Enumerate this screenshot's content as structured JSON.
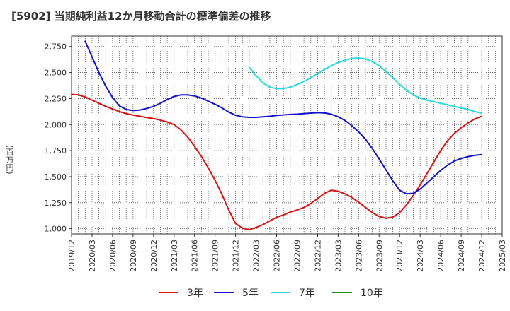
{
  "chart_data": {
    "type": "line",
    "title": "[5902]  当期純利益12か月移動合計の標準偏差の推移",
    "ylabel": "(百万円)",
    "xlabel": "",
    "ylim": [
      950,
      2850
    ],
    "yticks": [
      1000,
      1250,
      1500,
      1750,
      2000,
      2250,
      2500,
      2750
    ],
    "ytick_labels": [
      "1,000",
      "1,250",
      "1,500",
      "1,750",
      "2,000",
      "2,250",
      "2,500",
      "2,750"
    ],
    "xlim": [
      "2019-12",
      "2025-03"
    ],
    "xticks": [
      "2019/12",
      "2020/03",
      "2020/06",
      "2020/09",
      "2020/12",
      "2021/03",
      "2021/06",
      "2021/09",
      "2021/12",
      "2022/03",
      "2022/06",
      "2022/09",
      "2022/12",
      "2023/03",
      "2023/06",
      "2023/09",
      "2023/12",
      "2024/03",
      "2024/06",
      "2024/09",
      "2024/12",
      "2025/03"
    ],
    "grid": true,
    "legend_position": "bottom",
    "series": [
      {
        "name": "3年",
        "color": "#dd1111",
        "points": [
          [
            "2019-12",
            2290
          ],
          [
            "2020-01",
            2285
          ],
          [
            "2020-02",
            2265
          ],
          [
            "2020-03",
            2235
          ],
          [
            "2020-04",
            2205
          ],
          [
            "2020-05",
            2175
          ],
          [
            "2020-06",
            2150
          ],
          [
            "2020-07",
            2125
          ],
          [
            "2020-08",
            2105
          ],
          [
            "2020-09",
            2092
          ],
          [
            "2020-10",
            2080
          ],
          [
            "2020-11",
            2068
          ],
          [
            "2020-12",
            2058
          ],
          [
            "2021-01",
            2043
          ],
          [
            "2021-02",
            2025
          ],
          [
            "2021-03",
            2000
          ],
          [
            "2021-04",
            1950
          ],
          [
            "2021-05",
            1880
          ],
          [
            "2021-06",
            1790
          ],
          [
            "2021-07",
            1695
          ],
          [
            "2021-08",
            1585
          ],
          [
            "2021-09",
            1465
          ],
          [
            "2021-10",
            1330
          ],
          [
            "2021-11",
            1180
          ],
          [
            "2021-12",
            1050
          ],
          [
            "2022-01",
            1005
          ],
          [
            "2022-02",
            990
          ],
          [
            "2022-03",
            1012
          ],
          [
            "2022-04",
            1040
          ],
          [
            "2022-05",
            1075
          ],
          [
            "2022-06",
            1110
          ],
          [
            "2022-07",
            1132
          ],
          [
            "2022-08",
            1160
          ],
          [
            "2022-09",
            1180
          ],
          [
            "2022-10",
            1205
          ],
          [
            "2022-11",
            1242
          ],
          [
            "2022-12",
            1290
          ],
          [
            "2023-01",
            1340
          ],
          [
            "2023-02",
            1370
          ],
          [
            "2023-03",
            1360
          ],
          [
            "2023-04",
            1335
          ],
          [
            "2023-05",
            1300
          ],
          [
            "2023-06",
            1255
          ],
          [
            "2023-07",
            1205
          ],
          [
            "2023-08",
            1155
          ],
          [
            "2023-09",
            1118
          ],
          [
            "2023-10",
            1100
          ],
          [
            "2023-11",
            1112
          ],
          [
            "2023-12",
            1155
          ],
          [
            "2024-01",
            1230
          ],
          [
            "2024-02",
            1320
          ],
          [
            "2024-03",
            1420
          ],
          [
            "2024-04",
            1530
          ],
          [
            "2024-05",
            1640
          ],
          [
            "2024-06",
            1750
          ],
          [
            "2024-07",
            1845
          ],
          [
            "2024-08",
            1915
          ],
          [
            "2024-09",
            1970
          ],
          [
            "2024-10",
            2015
          ],
          [
            "2024-11",
            2055
          ],
          [
            "2024-12",
            2080
          ]
        ]
      },
      {
        "name": "5年",
        "color": "#1111cc",
        "points": [
          [
            "2020-02",
            2800
          ],
          [
            "2020-03",
            2650
          ],
          [
            "2020-04",
            2500
          ],
          [
            "2020-05",
            2370
          ],
          [
            "2020-06",
            2260
          ],
          [
            "2020-07",
            2180
          ],
          [
            "2020-08",
            2145
          ],
          [
            "2020-09",
            2135
          ],
          [
            "2020-10",
            2140
          ],
          [
            "2020-11",
            2155
          ],
          [
            "2020-12",
            2175
          ],
          [
            "2021-01",
            2205
          ],
          [
            "2021-02",
            2240
          ],
          [
            "2021-03",
            2270
          ],
          [
            "2021-04",
            2285
          ],
          [
            "2021-05",
            2285
          ],
          [
            "2021-06",
            2275
          ],
          [
            "2021-07",
            2255
          ],
          [
            "2021-08",
            2225
          ],
          [
            "2021-09",
            2195
          ],
          [
            "2021-10",
            2160
          ],
          [
            "2021-11",
            2120
          ],
          [
            "2021-12",
            2090
          ],
          [
            "2022-01",
            2075
          ],
          [
            "2022-02",
            2070
          ],
          [
            "2022-03",
            2070
          ],
          [
            "2022-04",
            2075
          ],
          [
            "2022-05",
            2080
          ],
          [
            "2022-06",
            2088
          ],
          [
            "2022-07",
            2093
          ],
          [
            "2022-08",
            2098
          ],
          [
            "2022-09",
            2100
          ],
          [
            "2022-10",
            2105
          ],
          [
            "2022-11",
            2110
          ],
          [
            "2022-12",
            2115
          ],
          [
            "2023-01",
            2112
          ],
          [
            "2023-02",
            2100
          ],
          [
            "2023-03",
            2075
          ],
          [
            "2023-04",
            2040
          ],
          [
            "2023-05",
            1990
          ],
          [
            "2023-06",
            1930
          ],
          [
            "2023-07",
            1860
          ],
          [
            "2023-08",
            1770
          ],
          [
            "2023-09",
            1670
          ],
          [
            "2023-10",
            1565
          ],
          [
            "2023-11",
            1460
          ],
          [
            "2023-12",
            1370
          ],
          [
            "2024-01",
            1335
          ],
          [
            "2024-02",
            1340
          ],
          [
            "2024-03",
            1380
          ],
          [
            "2024-04",
            1440
          ],
          [
            "2024-05",
            1500
          ],
          [
            "2024-06",
            1560
          ],
          [
            "2024-07",
            1610
          ],
          [
            "2024-08",
            1650
          ],
          [
            "2024-09",
            1675
          ],
          [
            "2024-10",
            1692
          ],
          [
            "2024-11",
            1705
          ],
          [
            "2024-12",
            1712
          ]
        ]
      },
      {
        "name": "7年",
        "color": "#22dddd",
        "points": [
          [
            "2022-02",
            2550
          ],
          [
            "2022-03",
            2470
          ],
          [
            "2022-04",
            2400
          ],
          [
            "2022-05",
            2360
          ],
          [
            "2022-06",
            2345
          ],
          [
            "2022-07",
            2345
          ],
          [
            "2022-08",
            2360
          ],
          [
            "2022-09",
            2385
          ],
          [
            "2022-10",
            2415
          ],
          [
            "2022-11",
            2450
          ],
          [
            "2022-12",
            2490
          ],
          [
            "2023-01",
            2530
          ],
          [
            "2023-02",
            2565
          ],
          [
            "2023-03",
            2595
          ],
          [
            "2023-04",
            2620
          ],
          [
            "2023-05",
            2635
          ],
          [
            "2023-06",
            2640
          ],
          [
            "2023-07",
            2630
          ],
          [
            "2023-08",
            2605
          ],
          [
            "2023-09",
            2565
          ],
          [
            "2023-10",
            2510
          ],
          [
            "2023-11",
            2450
          ],
          [
            "2023-12",
            2385
          ],
          [
            "2024-01",
            2330
          ],
          [
            "2024-02",
            2285
          ],
          [
            "2024-03",
            2255
          ],
          [
            "2024-04",
            2235
          ],
          [
            "2024-05",
            2220
          ],
          [
            "2024-06",
            2205
          ],
          [
            "2024-07",
            2190
          ],
          [
            "2024-08",
            2175
          ],
          [
            "2024-09",
            2160
          ],
          [
            "2024-10",
            2145
          ],
          [
            "2024-11",
            2125
          ],
          [
            "2024-12",
            2110
          ]
        ]
      },
      {
        "name": "10年",
        "color": "#228822",
        "points": []
      }
    ]
  }
}
